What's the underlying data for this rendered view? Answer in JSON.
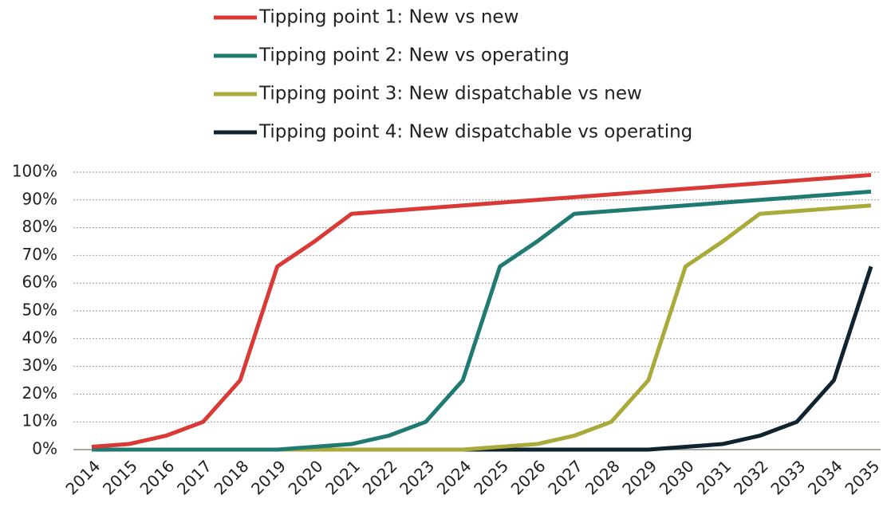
{
  "chart_data": {
    "type": "line",
    "categories": [
      "2014",
      "2015",
      "2016",
      "2017",
      "2018",
      "2019",
      "2020",
      "2021",
      "2022",
      "2023",
      "2024",
      "2025",
      "2026",
      "2027",
      "2028",
      "2029",
      "2030",
      "2031",
      "2032",
      "2033",
      "2034",
      "2035"
    ],
    "series": [
      {
        "name": "Tipping point 1: New vs new",
        "color": "#d93a35",
        "values": [
          1,
          2,
          5,
          10,
          25,
          66,
          75,
          85,
          86,
          87,
          88,
          89,
          90,
          91,
          92,
          93,
          94,
          95,
          96,
          97,
          98,
          99
        ]
      },
      {
        "name": "Tipping point 2: New vs operating",
        "color": "#1f7a72",
        "values": [
          0,
          0,
          0,
          0,
          0,
          0,
          1,
          2,
          5,
          10,
          25,
          66,
          75,
          85,
          86,
          87,
          88,
          89,
          90,
          91,
          92,
          93
        ]
      },
      {
        "name": "Tipping point 3: New dispatchable vs new",
        "color": "#a9aa3a",
        "values": [
          0,
          0,
          0,
          0,
          0,
          0,
          0,
          0,
          0,
          0,
          0,
          1,
          2,
          5,
          10,
          25,
          66,
          75,
          85,
          86,
          87,
          88
        ]
      },
      {
        "name": "Tipping point 4: New dispatchable vs operating",
        "color": "#0f2430",
        "values": [
          0,
          0,
          0,
          0,
          0,
          0,
          0,
          0,
          0,
          0,
          0,
          0,
          0,
          0,
          0,
          0,
          1,
          2,
          5,
          10,
          25,
          66
        ]
      }
    ],
    "ylim": [
      0,
      100
    ],
    "yticks": [
      {
        "value": 0,
        "label": "0%"
      },
      {
        "value": 10,
        "label": "10%"
      },
      {
        "value": 20,
        "label": "20%"
      },
      {
        "value": 30,
        "label": "30%"
      },
      {
        "value": 40,
        "label": "40%"
      },
      {
        "value": 50,
        "label": "50%"
      },
      {
        "value": 60,
        "label": "60%"
      },
      {
        "value": 70,
        "label": "70%"
      },
      {
        "value": 80,
        "label": "80%"
      },
      {
        "value": 90,
        "label": "90%"
      },
      {
        "value": 100,
        "label": "100%"
      }
    ],
    "grid": true
  }
}
